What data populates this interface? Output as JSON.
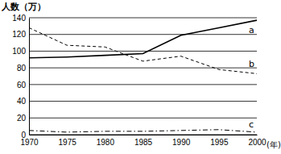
{
  "chart_data": {
    "type": "line",
    "y_label": "人数（万）",
    "x_label": "(年)",
    "x": [
      1970,
      1975,
      1980,
      1985,
      1990,
      1995,
      2000
    ],
    "series": [
      {
        "name": "a",
        "color": "#000000",
        "line_style": "solid",
        "values": [
          92,
          93,
          95,
          97,
          119,
          128,
          137
        ]
      },
      {
        "name": "b",
        "color": "#000000",
        "line_style": "dashed",
        "values": [
          128,
          107,
          105,
          88,
          94,
          78,
          73
        ]
      },
      {
        "name": "c",
        "color": "#000000",
        "line_style": "dashdot",
        "values": [
          5,
          3,
          4,
          4,
          5,
          6,
          3
        ]
      }
    ],
    "xlim": [
      1970,
      2000
    ],
    "xticks": [
      1970,
      1975,
      1980,
      1985,
      1990,
      1995,
      2000
    ],
    "ylim": [
      0,
      140
    ],
    "yticks": [
      0,
      20,
      40,
      60,
      80,
      100,
      120,
      140
    ],
    "grid": true
  }
}
